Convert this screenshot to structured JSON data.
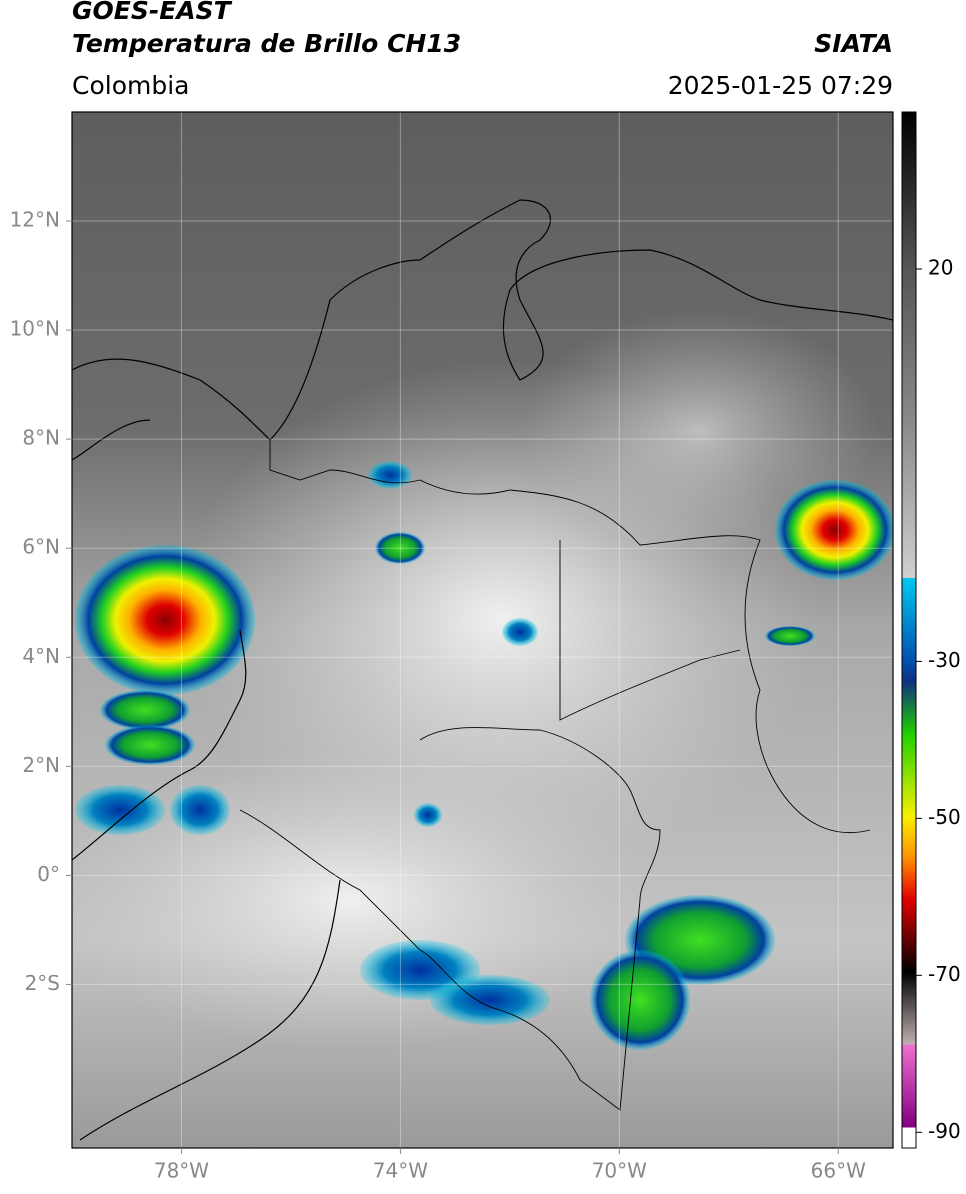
{
  "header": {
    "title": "GOES-EAST",
    "subtitle": "Temperatura de Brillo CH13",
    "source": "SIATA",
    "region": "Colombia",
    "datetime": "2025-01-25 07:29"
  },
  "map": {
    "xlim": [
      -80,
      -65
    ],
    "ylim": [
      -5,
      14
    ],
    "xticks": [
      {
        "value": -78,
        "label": "78°W"
      },
      {
        "value": -74,
        "label": "74°W"
      },
      {
        "value": -70,
        "label": "70°W"
      },
      {
        "value": -66,
        "label": "66°W"
      }
    ],
    "yticks": [
      {
        "value": 12,
        "label": "12°N"
      },
      {
        "value": 10,
        "label": "10°N"
      },
      {
        "value": 8,
        "label": "8°N"
      },
      {
        "value": 6,
        "label": "6°N"
      },
      {
        "value": 4,
        "label": "4°N"
      },
      {
        "value": 2,
        "label": "2°N"
      },
      {
        "value": 0,
        "label": "0°"
      },
      {
        "value": -2,
        "label": "2°S"
      }
    ],
    "grid": true
  },
  "colorbar": {
    "clim": [
      -92,
      40
    ],
    "ticks": [
      20,
      -30,
      -50,
      -70,
      -90
    ]
  }
}
